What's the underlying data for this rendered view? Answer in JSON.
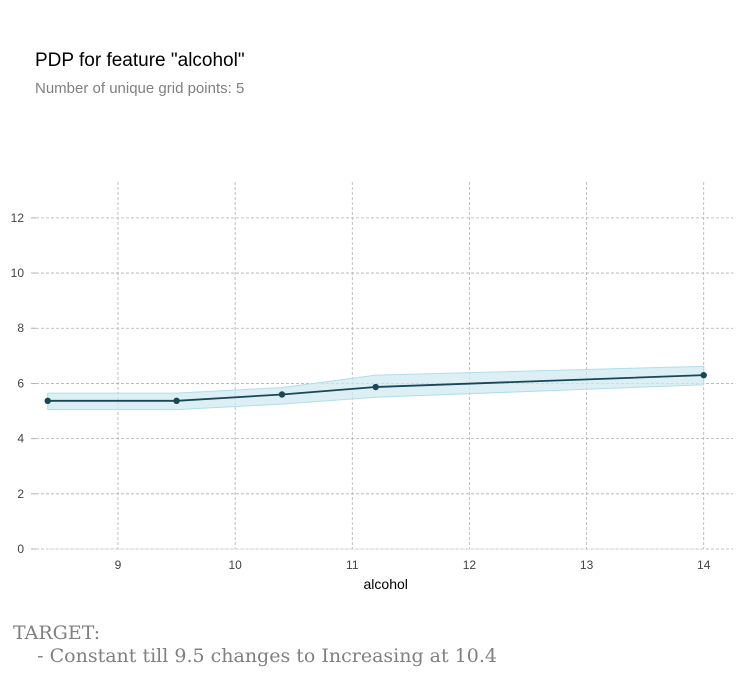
{
  "title": "PDP for feature \"alcohol\"",
  "subtitle": "Number of unique grid points: 5",
  "target": {
    "heading": "TARGET:",
    "detail": "    - Constant till 9.5 changes to Increasing at 10.4"
  },
  "chart_data": {
    "type": "line",
    "xlabel": "alcohol",
    "ylabel": "",
    "xlim": [
      8.3,
      14.25
    ],
    "ylim": [
      0,
      13.3
    ],
    "xticks": [
      9,
      10,
      11,
      12,
      13,
      14
    ],
    "yticks": [
      0,
      2,
      4,
      6,
      8,
      10,
      12
    ],
    "grid": true,
    "series": [
      {
        "x": [
          8.4,
          9.5,
          10.4,
          11.2,
          14.0
        ],
        "y": [
          5.37,
          5.37,
          5.6,
          5.87,
          6.3
        ],
        "lower": [
          5.05,
          5.05,
          5.25,
          5.5,
          5.95
        ],
        "upper": [
          5.65,
          5.65,
          5.85,
          6.3,
          6.62
        ]
      }
    ],
    "colors": {
      "line": "#1a4656",
      "band": "#cfe9f0",
      "band_stroke": "#b3dde9",
      "grid": "#b0b0b0"
    }
  }
}
